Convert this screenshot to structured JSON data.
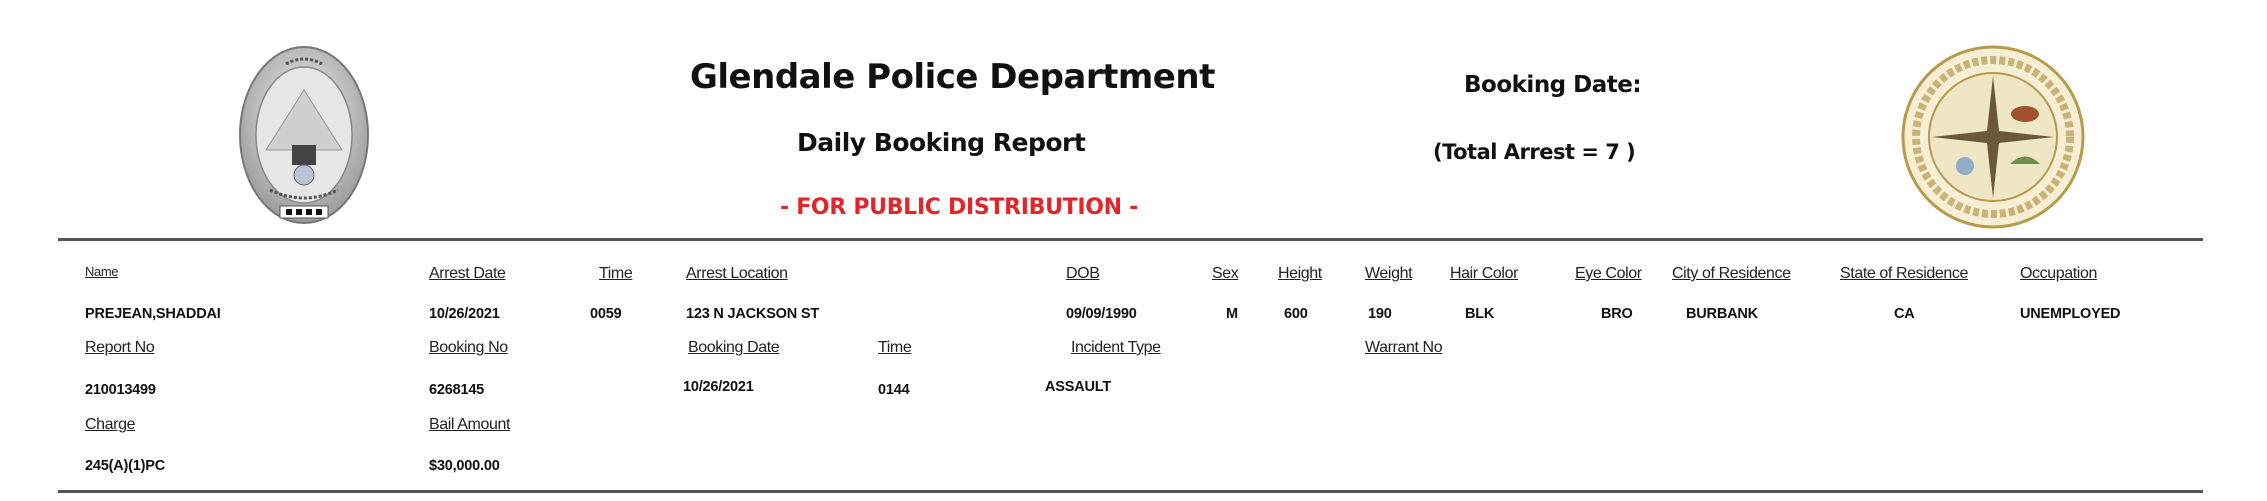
{
  "header": {
    "title": "Glendale Police Department",
    "subtitle": "Daily Booking Report",
    "distribution": "- FOR PUBLIC DISTRIBUTION -",
    "booking_date_label": "Booking Date:",
    "total_arrest": "(Total Arrest = 7 )",
    "left_logo": {
      "icon": "police-chief-badge",
      "text": [
        "CHIEF",
        "GLENDALE POLICE",
        "★★★★"
      ]
    },
    "right_logo": {
      "icon": "city-seal",
      "text": [
        "CITY OF GLENDALE",
        "CALIFORNIA"
      ]
    },
    "accent_color": "#e0262b"
  },
  "record": {
    "row1": {
      "labels": {
        "name": "Name",
        "arrest_date": "Arrest Date",
        "time": "Time",
        "arrest_location": "Arrest Location",
        "dob": "DOB",
        "sex": "Sex",
        "height": "Height",
        "weight": "Weight",
        "hair_color": "Hair Color",
        "eye_color": "Eye Color",
        "city": "City of Residence",
        "state": "State of Residence",
        "occupation": "Occupation"
      },
      "values": {
        "name": "PREJEAN,SHADDAI",
        "arrest_date": "10/26/2021",
        "time": "0059",
        "arrest_location": "123 N JACKSON ST",
        "dob": "09/09/1990",
        "sex": "M",
        "height": "600",
        "weight": "190",
        "hair_color": "BLK",
        "eye_color": "BRO",
        "city": "BURBANK",
        "state": "CA",
        "occupation": "UNEMPLOYED"
      }
    },
    "row2": {
      "labels": {
        "report_no": "Report No",
        "booking_no": "Booking No",
        "booking_date": "Booking Date",
        "time": "Time",
        "incident_type": "Incident Type",
        "warrant_no": "Warrant No"
      },
      "values": {
        "report_no": "210013499",
        "booking_no": "6268145",
        "booking_date": "10/26/2021",
        "time": "0144",
        "incident_type": "ASSAULT",
        "warrant_no": ""
      }
    },
    "row3": {
      "labels": {
        "charge": "Charge",
        "bail_amount": "Bail Amount"
      },
      "values": {
        "charge": "245(A)(1)PC",
        "bail_amount": "$30,000.00"
      }
    }
  }
}
